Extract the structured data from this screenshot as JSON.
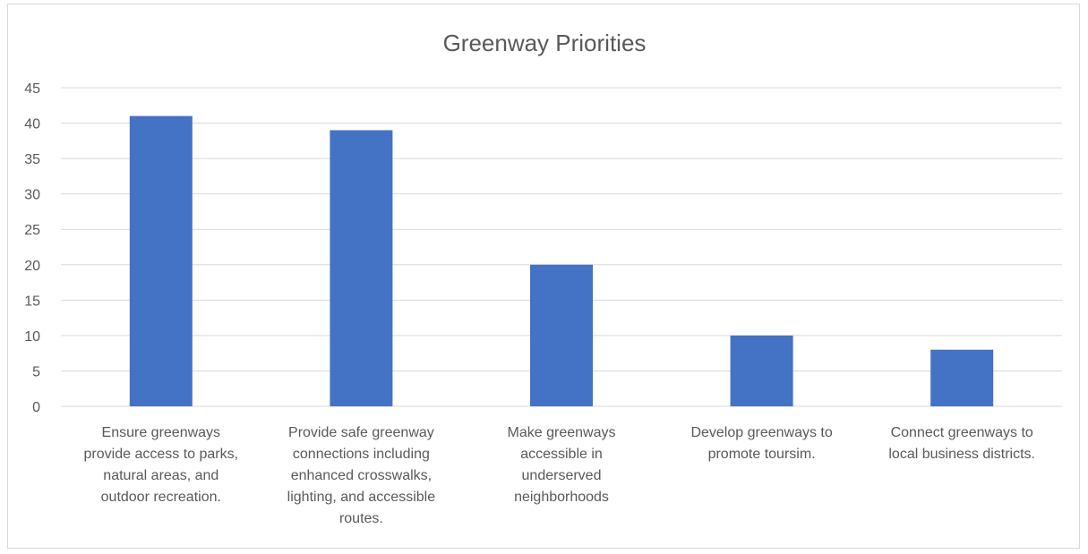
{
  "chart_data": {
    "type": "bar",
    "title": "Greenway Priorities",
    "xlabel": "",
    "ylabel": "",
    "ylim": [
      0,
      45
    ],
    "yticks": [
      0,
      5,
      10,
      15,
      20,
      25,
      30,
      35,
      40,
      45
    ],
    "grid": true,
    "legend": "none",
    "bar_color": "#4472c4",
    "categories": [
      [
        "Ensure greenways",
        "provide access to parks,",
        "natural areas, and",
        "outdoor recreation."
      ],
      [
        "Provide safe greenway",
        "connections including",
        "enhanced crosswalks,",
        "lighting, and accessible",
        "routes."
      ],
      [
        "Make greenways",
        "accessible in",
        "underserved",
        "neighborhoods"
      ],
      [
        "Develop greenways to",
        "promote toursim."
      ],
      [
        "Connect greenways to",
        "local business districts."
      ]
    ],
    "values": [
      41,
      39,
      20,
      10,
      8
    ]
  }
}
